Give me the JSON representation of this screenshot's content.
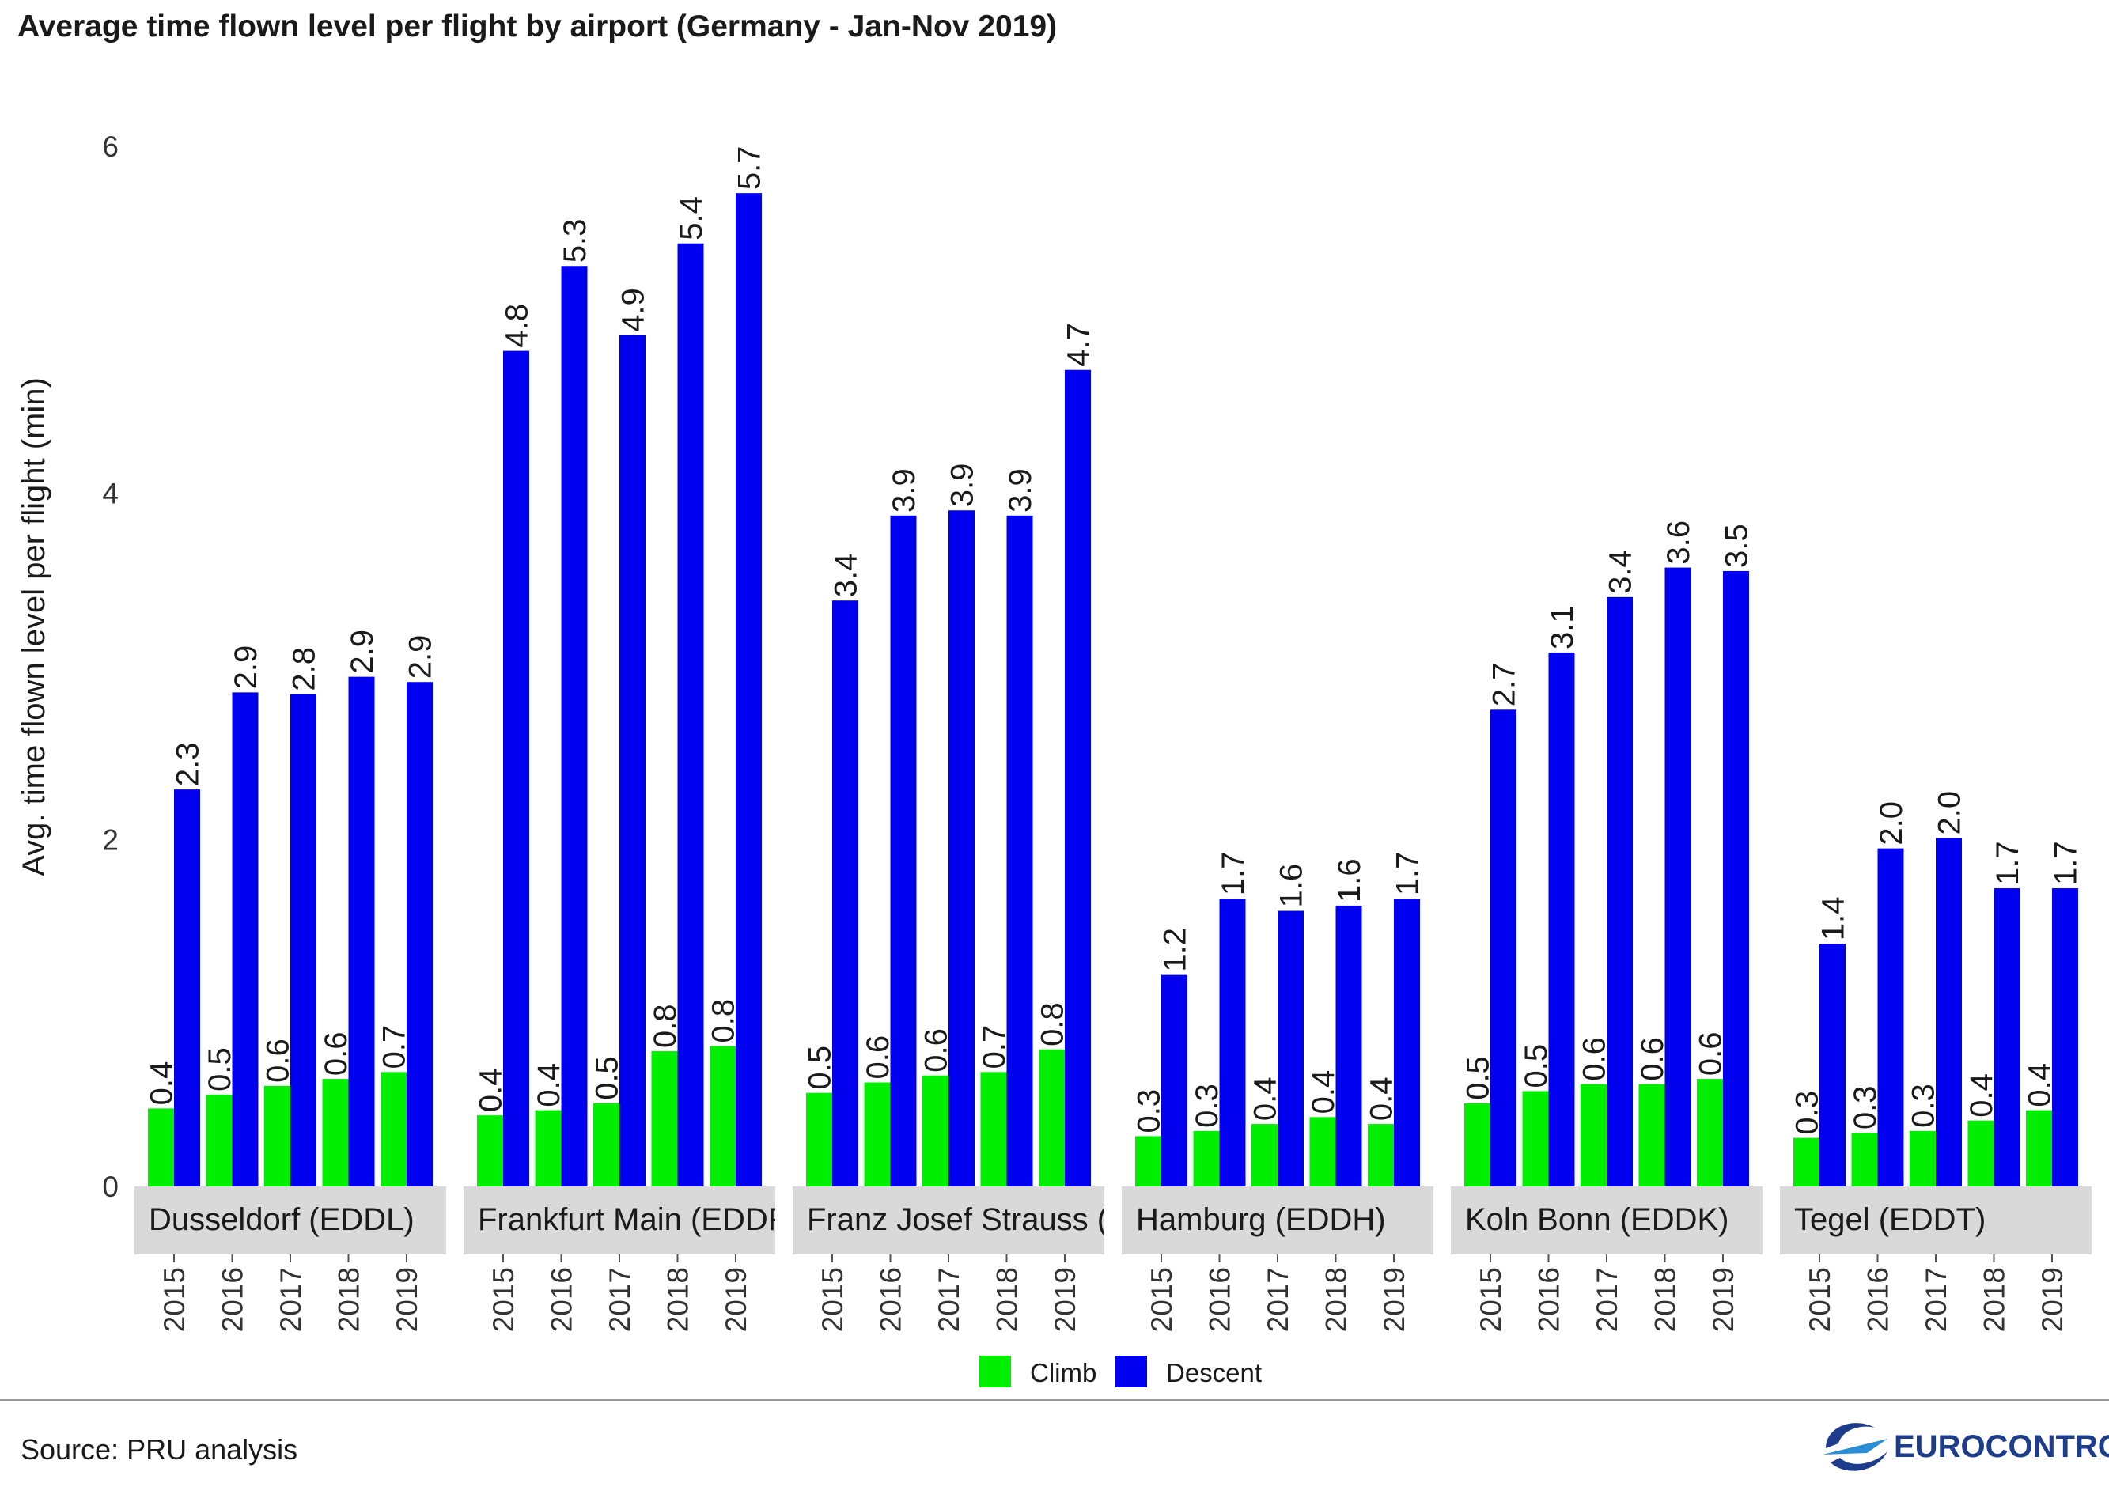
{
  "title": "Average time flown level per flight by airport (Germany - Jan-Nov 2019)",
  "source": "Source: PRU analysis",
  "logo_text": "EUROCONTROL",
  "colors": {
    "climb": "#00ee00",
    "descent": "#0000ee",
    "strip": "#d9d9d9"
  },
  "chart_data": {
    "type": "bar",
    "ylabel": "Avg. time flown level per flight (min)",
    "ylim": [
      0,
      6
    ],
    "yticks": [
      0,
      2,
      4,
      6
    ],
    "legend_position": "bottom",
    "series_names": [
      "Climb",
      "Descent"
    ],
    "panels": [
      {
        "label": "Dusseldorf (EDDL)",
        "years": [
          "2015",
          "2016",
          "2017",
          "2018",
          "2019"
        ],
        "climb": [
          0.45,
          0.53,
          0.58,
          0.62,
          0.66
        ],
        "climb_labels": [
          "0.4",
          "0.5",
          "0.6",
          "0.6",
          "0.7"
        ],
        "descent": [
          2.29,
          2.85,
          2.84,
          2.94,
          2.91
        ],
        "descent_labels": [
          "2.3",
          "2.9",
          "2.8",
          "2.9",
          "2.9"
        ]
      },
      {
        "label": "Frankfurt Main (EDDF)",
        "years": [
          "2015",
          "2016",
          "2017",
          "2018",
          "2019"
        ],
        "climb": [
          0.41,
          0.44,
          0.48,
          0.78,
          0.81
        ],
        "climb_labels": [
          "0.4",
          "0.4",
          "0.5",
          "0.8",
          "0.8"
        ],
        "descent": [
          4.82,
          5.31,
          4.91,
          5.44,
          5.73
        ],
        "descent_labels": [
          "4.8",
          "5.3",
          "4.9",
          "5.4",
          "5.7"
        ]
      },
      {
        "label": "Franz Josef Strauss (EDDM)",
        "years": [
          "2015",
          "2016",
          "2017",
          "2018",
          "2019"
        ],
        "climb": [
          0.54,
          0.6,
          0.64,
          0.66,
          0.79
        ],
        "climb_labels": [
          "0.5",
          "0.6",
          "0.6",
          "0.7",
          "0.8"
        ],
        "descent": [
          3.38,
          3.87,
          3.9,
          3.87,
          4.71
        ],
        "descent_labels": [
          "3.4",
          "3.9",
          "3.9",
          "3.9",
          "4.7"
        ]
      },
      {
        "label": "Hamburg (EDDH)",
        "years": [
          "2015",
          "2016",
          "2017",
          "2018",
          "2019"
        ],
        "climb": [
          0.29,
          0.32,
          0.36,
          0.4,
          0.36
        ],
        "climb_labels": [
          "0.3",
          "0.3",
          "0.4",
          "0.4",
          "0.4"
        ],
        "descent": [
          1.22,
          1.66,
          1.59,
          1.62,
          1.66
        ],
        "descent_labels": [
          "1.2",
          "1.7",
          "1.6",
          "1.6",
          "1.7"
        ]
      },
      {
        "label": "Koln Bonn (EDDK)",
        "years": [
          "2015",
          "2016",
          "2017",
          "2018",
          "2019"
        ],
        "climb": [
          0.48,
          0.55,
          0.59,
          0.59,
          0.62
        ],
        "climb_labels": [
          "0.5",
          "0.5",
          "0.6",
          "0.6",
          "0.6"
        ],
        "descent": [
          2.75,
          3.08,
          3.4,
          3.57,
          3.55
        ],
        "descent_labels": [
          "2.7",
          "3.1",
          "3.4",
          "3.6",
          "3.5"
        ]
      },
      {
        "label": "Tegel (EDDT)",
        "years": [
          "2015",
          "2016",
          "2017",
          "2018",
          "2019"
        ],
        "climb": [
          0.28,
          0.31,
          0.32,
          0.38,
          0.44
        ],
        "climb_labels": [
          "0.3",
          "0.3",
          "0.3",
          "0.4",
          "0.4"
        ],
        "descent": [
          1.4,
          1.95,
          2.01,
          1.72,
          1.72
        ],
        "descent_labels": [
          "1.4",
          "2.0",
          "2.0",
          "1.7",
          "1.7"
        ]
      }
    ]
  }
}
